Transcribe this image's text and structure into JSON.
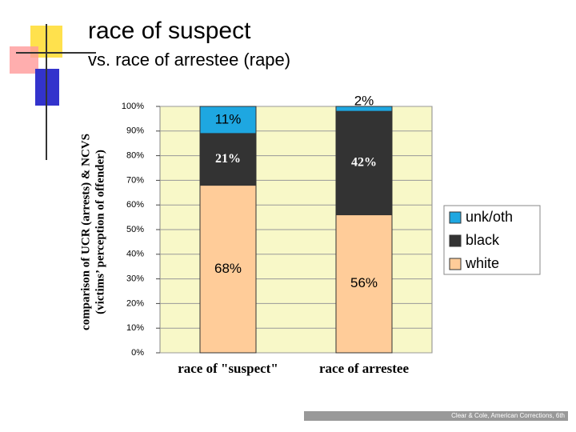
{
  "chart_data": {
    "type": "stacked_bar",
    "title": "race of suspect",
    "subtitle": "vs. race of arrestee (rape)",
    "ylabel": [
      "comparison of UCR (arrests) & NCVS",
      "(victims’ perception of offender)"
    ],
    "categories": [
      "race of \"suspect\"",
      "race of arrestee"
    ],
    "series": [
      {
        "name": "white",
        "color": "#ffcc99",
        "label_color": "#000000",
        "values": [
          68,
          56
        ],
        "value_labels": [
          "68%",
          "56%"
        ]
      },
      {
        "name": "black",
        "color": "#333333",
        "label_color": "#ffffff",
        "values": [
          21,
          42
        ],
        "value_labels": [
          "21%",
          "42%"
        ]
      },
      {
        "name": "unk/oth",
        "color": "#1ea7e1",
        "label_color": "#000000",
        "values": [
          11,
          2
        ],
        "value_labels": [
          "11%",
          "2%"
        ]
      }
    ],
    "ylim": [
      0,
      100
    ],
    "yticks": [
      {
        "value": 0,
        "label": "0%"
      },
      {
        "value": 10,
        "label": "10%"
      },
      {
        "value": 20,
        "label": "20%"
      },
      {
        "value": 30,
        "label": "30%"
      },
      {
        "value": 40,
        "label": "40%"
      },
      {
        "value": 50,
        "label": "50%"
      },
      {
        "value": 60,
        "label": "60%"
      },
      {
        "value": 70,
        "label": "70%"
      },
      {
        "value": 80,
        "label": "80%"
      },
      {
        "value": 90,
        "label": "90%"
      },
      {
        "value": 100,
        "label": "100%"
      }
    ],
    "grid": true,
    "legend": "right"
  },
  "footer": "Clear & Cole, American Corrections, 6th"
}
